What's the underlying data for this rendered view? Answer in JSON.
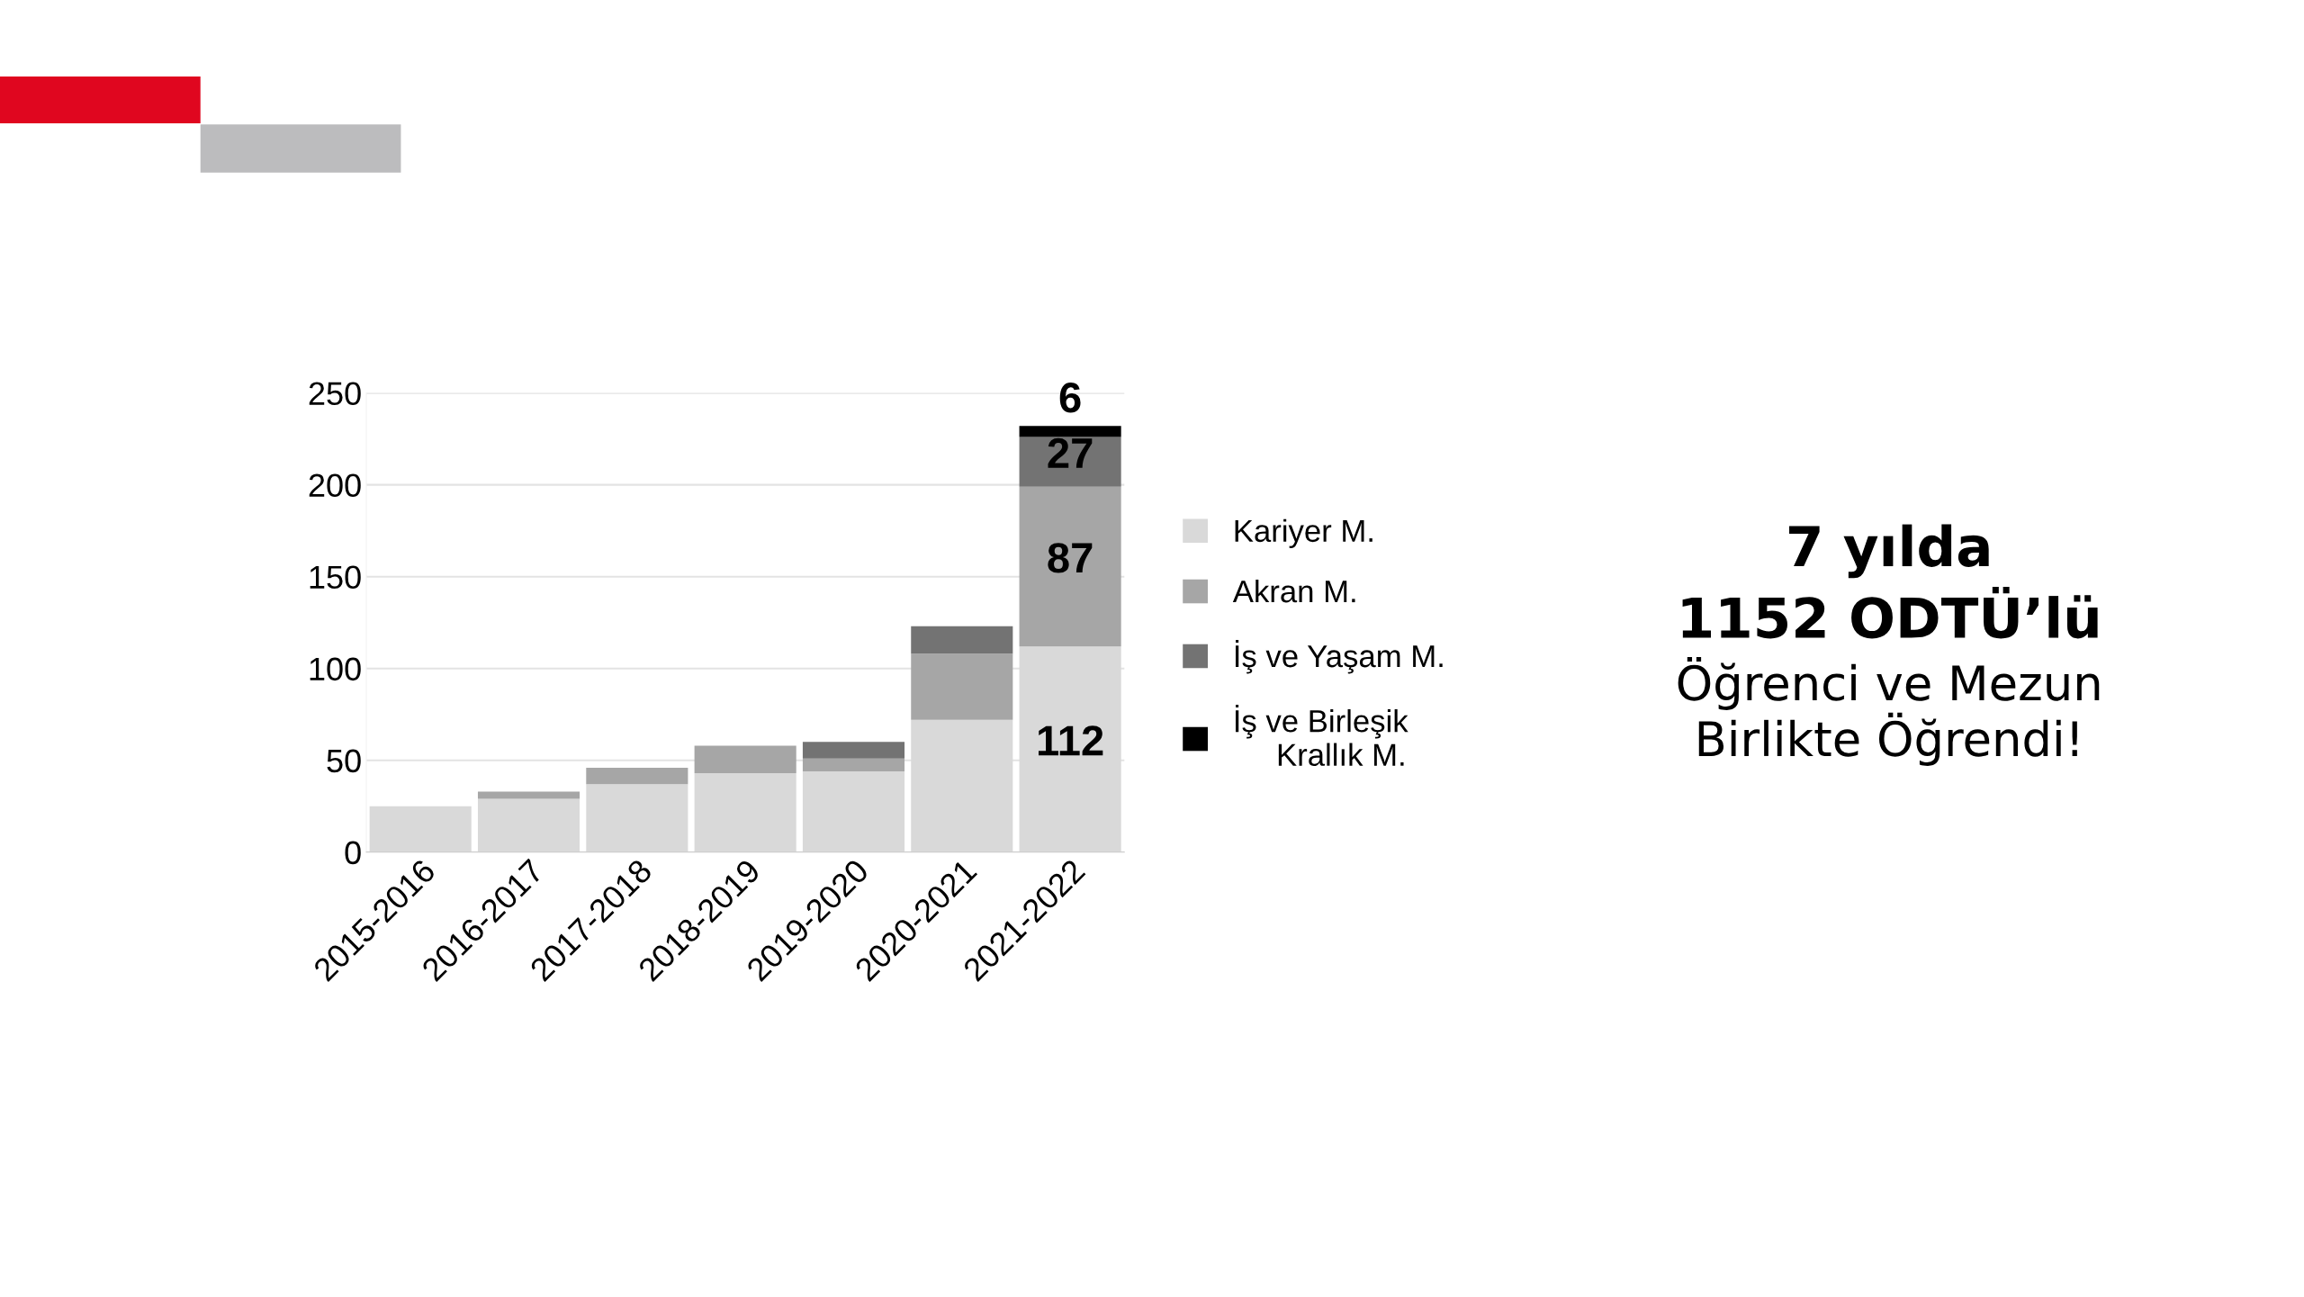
{
  "chart_data": {
    "type": "bar",
    "stacked": true,
    "categories": [
      "2015-2016",
      "2016-2017",
      "2017-2018",
      "2018-2019",
      "2019-2020",
      "2020-2021",
      "2021-2022"
    ],
    "series": [
      {
        "name": "Kariyer M.",
        "color": "#d9d9d9",
        "values": [
          25,
          29,
          37,
          43,
          44,
          72,
          112
        ],
        "value_labels": [
          null,
          null,
          null,
          null,
          null,
          null,
          "112"
        ]
      },
      {
        "name": "Akran M.",
        "color": "#a6a6a6",
        "values": [
          0,
          4,
          9,
          15,
          7,
          36,
          87
        ],
        "value_labels": [
          null,
          null,
          null,
          null,
          null,
          null,
          "87"
        ]
      },
      {
        "name": "İş ve Yaşam M.",
        "color": "#737373",
        "values": [
          0,
          0,
          0,
          0,
          9,
          15,
          27
        ],
        "value_labels": [
          null,
          null,
          null,
          null,
          null,
          null,
          "27"
        ]
      },
      {
        "name": "İş ve Birleşik\n     Krallık M.",
        "color": "#000000",
        "values": [
          0,
          0,
          0,
          0,
          0,
          0,
          6
        ],
        "value_labels": [
          null,
          null,
          null,
          null,
          null,
          null,
          "6"
        ]
      }
    ],
    "ylim": [
      0,
      250
    ],
    "yticks": [
      0,
      50,
      100,
      150,
      200,
      250
    ],
    "grid": "y",
    "legend": "right",
    "annotations": [
      "7 yılda",
      "1152 ODTÜ’lü",
      "Öğrenci ve Mezun",
      "Birlikte Öğrendi!"
    ]
  }
}
